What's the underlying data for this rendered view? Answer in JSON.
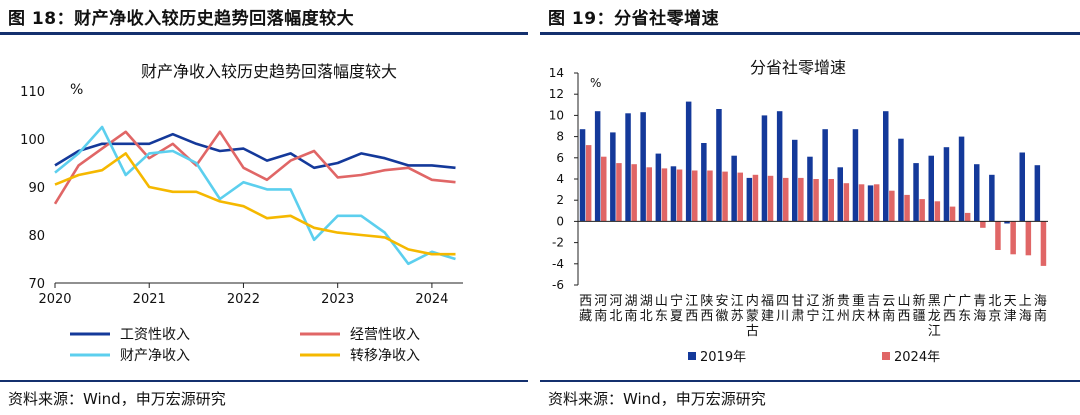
{
  "left": {
    "figure_title": "图 18：财产净收入较历史趋势回落幅度较大",
    "source": "资料来源：Wind，申万宏源研究"
  },
  "right": {
    "figure_title": "图 19：分省社零增速",
    "source": "资料来源：Wind，申万宏源研究"
  },
  "chart_data": [
    {
      "type": "line",
      "title": "财产净收入较历史趋势回落幅度较大",
      "ylabel": "%",
      "xlabel": "",
      "ylim": [
        70,
        110
      ],
      "yticks": [
        70,
        80,
        90,
        100,
        110
      ],
      "xlim": [
        2020,
        2024.33
      ],
      "xticks": [
        2020,
        2021,
        2022,
        2023,
        2024
      ],
      "legend_position": "bottom",
      "x": [
        2020,
        2020.25,
        2020.5,
        2020.75,
        2021,
        2021.25,
        2021.5,
        2021.75,
        2022,
        2022.25,
        2022.5,
        2022.75,
        2023,
        2023.25,
        2023.5,
        2023.75,
        2024,
        2024.25
      ],
      "series": [
        {
          "name": "工资性收入",
          "color": "#14399a",
          "values": [
            94.5,
            97.5,
            99,
            99,
            99,
            101,
            99,
            97.5,
            98,
            95.5,
            97,
            94,
            95,
            97,
            96,
            94.5,
            94.5,
            94
          ]
        },
        {
          "name": "经营性收入",
          "color": "#e06666",
          "values": [
            86.5,
            94.5,
            98,
            101.5,
            96,
            99,
            94.5,
            101.5,
            94,
            91.5,
            95.5,
            97.5,
            92,
            92.5,
            93.5,
            94,
            91.5,
            91
          ]
        },
        {
          "name": "财产净收入",
          "color": "#5ccfee",
          "values": [
            93,
            97,
            102.5,
            92.5,
            97,
            97.5,
            95,
            87.5,
            91,
            89.5,
            89.5,
            79,
            84,
            84,
            80.5,
            74,
            76.5,
            75
          ]
        },
        {
          "name": "转移净收入",
          "color": "#f5b800",
          "values": [
            90.5,
            92.5,
            93.5,
            97,
            90,
            89,
            89,
            87,
            86,
            83.5,
            84,
            81.5,
            80.5,
            80,
            79.5,
            77,
            76,
            76
          ]
        }
      ]
    },
    {
      "type": "bar",
      "title": "分省社零增速",
      "ylabel": "%",
      "xlabel": "",
      "ylim": [
        -6,
        14
      ],
      "yticks": [
        -6,
        -4,
        -2,
        0,
        2,
        4,
        6,
        8,
        10,
        12,
        14
      ],
      "legend_position": "bottom",
      "categories": [
        "西藏",
        "河南",
        "河北",
        "湖南",
        "湖北",
        "山东",
        "宁夏",
        "江西",
        "陕西",
        "安徽",
        "江苏",
        "内蒙古",
        "福建",
        "四川",
        "甘肃",
        "辽宁",
        "浙江",
        "贵州",
        "重庆",
        "吉林",
        "云南",
        "山西",
        "新疆",
        "黑龙江",
        "广西",
        "广东",
        "青海",
        "北京",
        "天津",
        "上海",
        "海南"
      ],
      "series": [
        {
          "name": "2019年",
          "color": "#14399a",
          "values": [
            8.7,
            10.4,
            8.4,
            10.2,
            10.3,
            6.4,
            5.2,
            11.3,
            7.4,
            10.6,
            6.2,
            4.1,
            10.0,
            10.4,
            7.7,
            6.1,
            8.7,
            5.1,
            8.7,
            3.4,
            10.4,
            7.8,
            5.5,
            6.2,
            7.0,
            8.0,
            5.4,
            4.4,
            -0.2,
            6.5,
            5.3
          ]
        },
        {
          "name": "2024年",
          "color": "#e06666",
          "values": [
            7.2,
            6.1,
            5.5,
            5.4,
            5.1,
            5.0,
            4.9,
            4.8,
            4.8,
            4.7,
            4.6,
            4.4,
            4.3,
            4.1,
            4.1,
            4.0,
            4.0,
            3.6,
            3.5,
            3.5,
            2.9,
            2.5,
            2.1,
            1.9,
            1.4,
            0.8,
            -0.6,
            -2.7,
            -3.1,
            -3.2,
            -4.2
          ]
        }
      ]
    }
  ]
}
